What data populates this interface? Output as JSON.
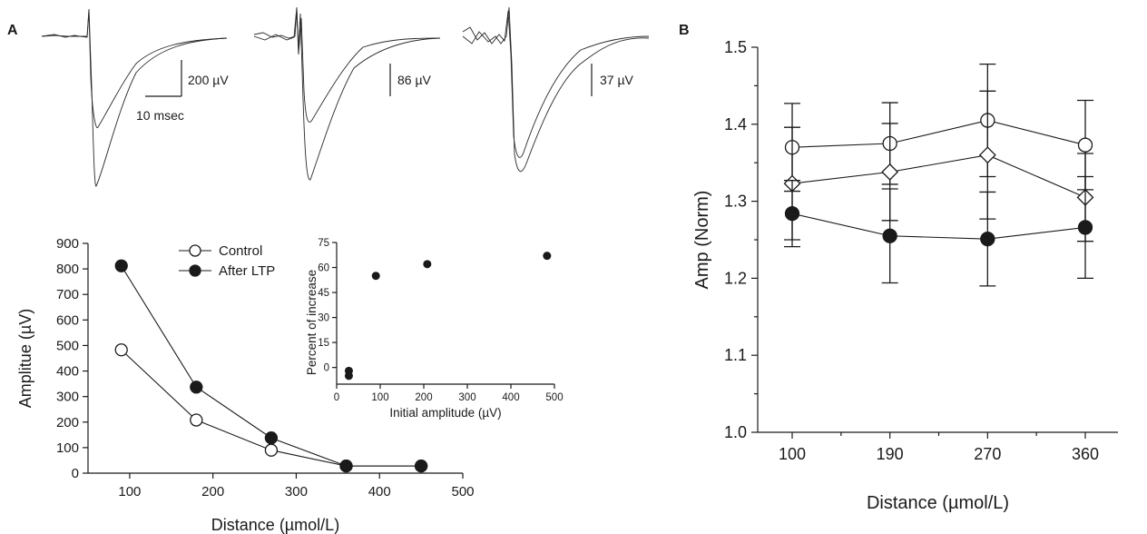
{
  "panel_labels": {
    "a": "A",
    "b": "B"
  },
  "traces": {
    "scales": [
      {
        "amplitude": "200 µV",
        "time": "10 msec"
      },
      {
        "amplitude": "86 µV"
      },
      {
        "amplitude": "37 µV"
      }
    ]
  },
  "chart_data": [
    {
      "id": "panelA-main",
      "type": "line",
      "xlabel": "Distance (µmol/L)",
      "ylabel": "Amplitue (µV)",
      "x": [
        90,
        180,
        270,
        360,
        450
      ],
      "xlim": [
        50,
        500
      ],
      "ylim": [
        0,
        900
      ],
      "x_ticks": [
        100,
        200,
        300,
        400,
        500
      ],
      "y_ticks": [
        0,
        100,
        200,
        300,
        400,
        500,
        600,
        700,
        800,
        900
      ],
      "legend_position": "top",
      "series": [
        {
          "name": "Control",
          "marker": "open-circle",
          "values": [
            483,
            208,
            90,
            28,
            28
          ]
        },
        {
          "name": "After LTP",
          "marker": "filled-circle",
          "values": [
            812,
            337,
            138,
            28,
            28
          ]
        }
      ]
    },
    {
      "id": "panelA-inset",
      "type": "scatter",
      "xlabel": "Initial amplitude (µV)",
      "ylabel": "Percent of increase",
      "xlim": [
        0,
        500
      ],
      "ylim": [
        -10,
        75
      ],
      "x_ticks": [
        0,
        100,
        200,
        300,
        400,
        500
      ],
      "y_ticks": [
        0,
        15,
        30,
        45,
        60,
        75
      ],
      "points": [
        {
          "x": 28,
          "y": -2
        },
        {
          "x": 28,
          "y": -5
        },
        {
          "x": 90,
          "y": 55
        },
        {
          "x": 208,
          "y": 62
        },
        {
          "x": 483,
          "y": 67
        }
      ]
    },
    {
      "id": "panelB",
      "type": "line",
      "xlabel": "Distance (µmol/L)",
      "ylabel": "Amp (Norm)",
      "categories": [
        "100",
        "190",
        "270",
        "360"
      ],
      "ylim": [
        1.0,
        1.5
      ],
      "y_ticks": [
        "1.0",
        "1.1",
        "1.2",
        "1.3",
        "1.4",
        "1.5"
      ],
      "series": [
        {
          "marker": "open-circle",
          "values": [
            1.37,
            1.375,
            1.405,
            1.373
          ],
          "errors": [
            0.057,
            0.053,
            0.073,
            0.058
          ]
        },
        {
          "marker": "open-diamond",
          "values": [
            1.323,
            1.338,
            1.36,
            1.305
          ],
          "errors": [
            0.073,
            0.063,
            0.083,
            0.057
          ]
        },
        {
          "marker": "filled-circle",
          "values": [
            1.284,
            1.255,
            1.251,
            1.266
          ],
          "errors": [
            0.043,
            0.061,
            0.061,
            0.066
          ]
        }
      ]
    }
  ]
}
